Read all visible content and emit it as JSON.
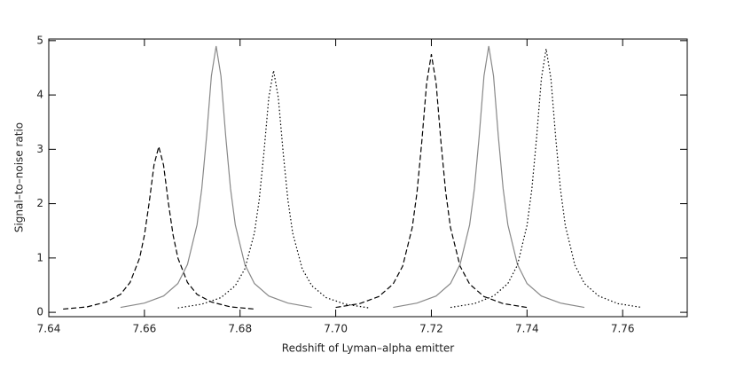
{
  "chart_data": {
    "type": "line",
    "x_label": "Redshift of Lyman–alpha emitter",
    "y_label": "Signal–to–noise ratio",
    "xlim": [
      7.64,
      7.7735
    ],
    "ylim": [
      -0.08,
      5.03
    ],
    "xticks": [
      7.64,
      7.66,
      7.68,
      {
        "value": 7.7,
        "label": "7.70"
      },
      7.72,
      7.74,
      7.76
    ],
    "yticks": [
      0,
      1,
      2,
      3,
      4,
      5
    ],
    "series": [
      {
        "color": "#000000",
        "line_style": "dashed",
        "x": [
          7.643,
          7.648,
          7.652,
          7.655,
          7.657,
          7.659,
          7.66,
          7.661,
          7.662,
          7.663,
          7.664,
          7.665,
          7.666,
          7.667,
          7.669,
          7.671,
          7.674,
          7.678,
          7.683
        ],
        "values": [
          0.06,
          0.1,
          0.19,
          0.33,
          0.55,
          1.0,
          1.42,
          2.02,
          2.71,
          3.05,
          2.71,
          2.02,
          1.42,
          1.0,
          0.55,
          0.33,
          0.19,
          0.1,
          0.06
        ]
      },
      {
        "color": "#888888",
        "line_style": "solid",
        "x": [
          7.655,
          7.66,
          7.664,
          7.667,
          7.669,
          7.671,
          7.672,
          7.673,
          7.674,
          7.675,
          7.676,
          7.677,
          7.678,
          7.679,
          7.681,
          7.683,
          7.686,
          7.69,
          7.695
        ],
        "values": [
          0.09,
          0.17,
          0.3,
          0.53,
          0.88,
          1.61,
          2.28,
          3.24,
          4.35,
          4.9,
          4.35,
          3.24,
          2.28,
          1.61,
          0.88,
          0.53,
          0.3,
          0.17,
          0.09
        ]
      },
      {
        "color": "#000000",
        "line_style": "dotted",
        "x": [
          7.667,
          7.672,
          7.676,
          7.679,
          7.681,
          7.683,
          7.684,
          7.685,
          7.686,
          7.687,
          7.688,
          7.689,
          7.69,
          7.691,
          7.693,
          7.695,
          7.698,
          7.702,
          7.707
        ],
        "values": [
          0.08,
          0.15,
          0.27,
          0.49,
          0.8,
          1.46,
          2.07,
          2.95,
          3.95,
          4.45,
          3.95,
          2.95,
          2.07,
          1.46,
          0.8,
          0.49,
          0.27,
          0.15,
          0.08
        ]
      },
      {
        "color": "#000000",
        "line_style": "dashed",
        "x": [
          7.7,
          7.705,
          7.709,
          7.712,
          7.714,
          7.716,
          7.717,
          7.718,
          7.719,
          7.72,
          7.721,
          7.722,
          7.723,
          7.724,
          7.726,
          7.728,
          7.731,
          7.735,
          7.74
        ],
        "values": [
          0.09,
          0.16,
          0.29,
          0.52,
          0.85,
          1.56,
          2.21,
          3.14,
          4.21,
          4.75,
          4.21,
          3.14,
          2.21,
          1.56,
          0.85,
          0.52,
          0.29,
          0.16,
          0.09
        ]
      },
      {
        "color": "#888888",
        "line_style": "solid",
        "x": [
          7.712,
          7.717,
          7.721,
          7.724,
          7.726,
          7.728,
          7.729,
          7.73,
          7.731,
          7.732,
          7.733,
          7.734,
          7.735,
          7.736,
          7.738,
          7.74,
          7.743,
          7.747,
          7.752
        ],
        "values": [
          0.09,
          0.17,
          0.3,
          0.53,
          0.88,
          1.61,
          2.28,
          3.24,
          4.35,
          4.9,
          4.35,
          3.24,
          2.28,
          1.61,
          0.88,
          0.53,
          0.3,
          0.17,
          0.09
        ]
      },
      {
        "color": "#000000",
        "line_style": "dotted",
        "x": [
          7.724,
          7.729,
          7.733,
          7.736,
          7.738,
          7.74,
          7.741,
          7.742,
          7.743,
          7.744,
          7.745,
          7.746,
          7.747,
          7.748,
          7.75,
          7.752,
          7.755,
          7.759,
          7.764
        ],
        "values": [
          0.09,
          0.16,
          0.3,
          0.53,
          0.87,
          1.6,
          2.26,
          3.21,
          4.3,
          4.85,
          4.3,
          3.21,
          2.26,
          1.6,
          0.87,
          0.53,
          0.3,
          0.16,
          0.09
        ]
      }
    ]
  }
}
